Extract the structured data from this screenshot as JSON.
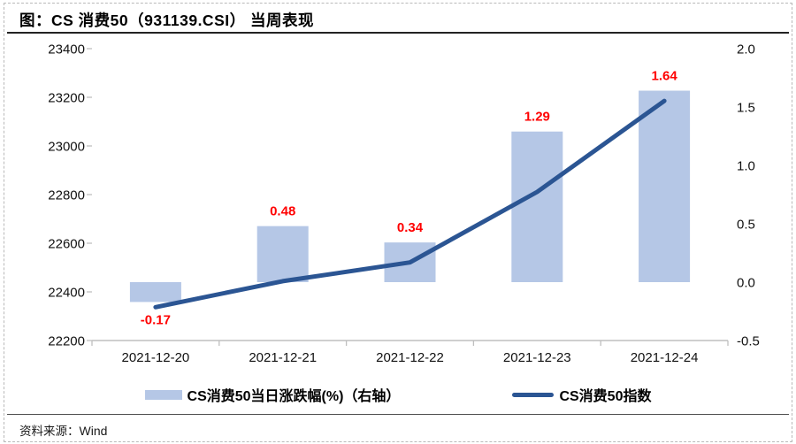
{
  "title": "图：CS 消费50（931139.CSI） 当周表现",
  "footer": {
    "source_label": "资料来源：",
    "source_value": "Wind"
  },
  "legend": {
    "bar": {
      "label": "CS消费50当日涨跌幅(%)（右轴）"
    },
    "line": {
      "label": "CS消费50指数"
    }
  },
  "colors": {
    "bar_fill": "#b5c7e6",
    "line_stroke": "#2b5593",
    "data_label": "#ff0000",
    "axis_line": "#bfbfbf",
    "tick_text": "#111111"
  },
  "chart_data": {
    "type": "combo: bar + line",
    "categories": [
      "2021-12-20",
      "2021-12-21",
      "2021-12-22",
      "2021-12-23",
      "2021-12-24"
    ],
    "series": [
      {
        "name": "CS消费50当日涨跌幅(%)（右轴）",
        "type": "bar",
        "axis": "right",
        "values": [
          -0.17,
          0.48,
          0.34,
          1.29,
          1.64
        ],
        "data_labels": [
          "-0.17",
          "0.48",
          "0.34",
          "1.29",
          "1.64"
        ]
      },
      {
        "name": "CS消费50指数",
        "type": "line",
        "axis": "left",
        "values": [
          22337,
          22444,
          22521,
          22811,
          23185
        ]
      }
    ],
    "left_axis": {
      "min": 22200,
      "max": 23400,
      "step": 200,
      "tick_labels": [
        "22200",
        "22400",
        "22600",
        "22800",
        "23000",
        "23200",
        "23400"
      ]
    },
    "right_axis": {
      "min": -0.5,
      "max": 2.0,
      "step": 0.5,
      "tick_labels": [
        "-0.5",
        "0.0",
        "0.5",
        "1.0",
        "1.5",
        "2.0"
      ]
    },
    "grid": "off",
    "legend_position": "bottom-center"
  }
}
